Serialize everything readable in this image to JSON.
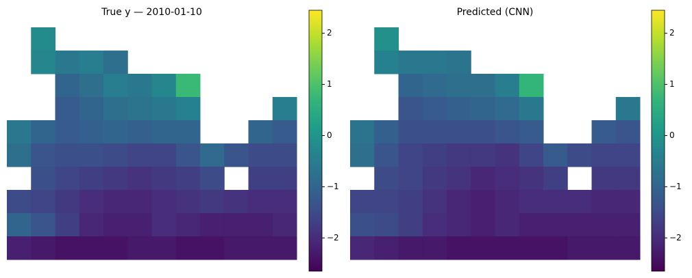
{
  "chart_data": [
    {
      "type": "heatmap",
      "title": "True y — 2010-01-10",
      "colormap": "viridis",
      "clim": [
        -2.65,
        2.45
      ],
      "cticks": [
        {
          "value": -2,
          "label": "−2"
        },
        {
          "value": -1,
          "label": "−1"
        },
        0,
        1,
        2
      ],
      "z": [
        [
          null,
          -0.2,
          null,
          null,
          null,
          null,
          null,
          null,
          null,
          null,
          null,
          null
        ],
        [
          null,
          -0.3,
          -0.6,
          -0.5,
          -0.8,
          null,
          null,
          null,
          null,
          null,
          null,
          null
        ],
        [
          null,
          null,
          -1.0,
          -0.8,
          -0.5,
          -0.6,
          -0.3,
          0.8,
          null,
          null,
          null,
          null
        ],
        [
          null,
          null,
          -1.2,
          -1.0,
          -0.8,
          -0.7,
          -0.6,
          -0.4,
          null,
          null,
          null,
          -0.5
        ],
        [
          -0.6,
          -1.0,
          -1.2,
          -1.1,
          -1.0,
          -1.1,
          -1.0,
          -1.0,
          null,
          null,
          -1.0,
          -1.2
        ],
        [
          -0.8,
          -1.3,
          -1.4,
          -1.4,
          -1.5,
          -1.6,
          -1.6,
          -1.3,
          -0.9,
          -1.3,
          -1.5,
          -1.5
        ],
        [
          null,
          -1.4,
          -1.6,
          -1.7,
          -1.8,
          -1.9,
          -1.8,
          -1.7,
          -1.5,
          null,
          -1.7,
          -1.7
        ],
        [
          -1.5,
          -1.6,
          -1.8,
          -2.0,
          -2.1,
          -2.1,
          -2.0,
          -1.9,
          -1.8,
          -1.9,
          -2.0,
          -2.0
        ],
        [
          -1.0,
          -1.3,
          -1.7,
          -2.1,
          -2.2,
          -2.2,
          -2.0,
          -2.1,
          -2.2,
          -2.2,
          -2.2,
          -2.1
        ],
        [
          -2.2,
          -2.3,
          -2.4,
          -2.4,
          -2.4,
          -2.3,
          -2.3,
          -2.4,
          -2.4,
          -2.3,
          -2.3,
          -2.3
        ]
      ]
    },
    {
      "type": "heatmap",
      "title": "Predicted (CNN)",
      "colormap": "viridis",
      "clim": [
        -2.65,
        2.45
      ],
      "cticks": [
        {
          "value": -2,
          "label": "−2"
        },
        {
          "value": -1,
          "label": "−1"
        },
        0,
        1,
        2
      ],
      "z": [
        [
          null,
          -0.1,
          null,
          null,
          null,
          null,
          null,
          null,
          null,
          null,
          null,
          null
        ],
        [
          null,
          -0.4,
          -0.6,
          -0.6,
          -0.7,
          null,
          null,
          null,
          null,
          null,
          null,
          null
        ],
        [
          null,
          null,
          -1.0,
          -0.9,
          -0.8,
          -0.8,
          -0.5,
          0.7,
          null,
          null,
          null,
          null
        ],
        [
          null,
          null,
          -1.3,
          -1.2,
          -1.1,
          -1.0,
          -0.9,
          -0.6,
          null,
          null,
          null,
          -0.6
        ],
        [
          -0.7,
          -1.1,
          -1.4,
          -1.4,
          -1.4,
          -1.4,
          -1.3,
          -1.2,
          null,
          null,
          -1.2,
          -1.3
        ],
        [
          -0.8,
          -1.3,
          -1.6,
          -1.7,
          -1.8,
          -1.8,
          -1.9,
          -1.6,
          -1.2,
          -1.5,
          -1.6,
          -1.6
        ],
        [
          null,
          -1.5,
          -1.6,
          -1.8,
          -1.9,
          -2.1,
          -2.0,
          -1.9,
          -1.7,
          null,
          -1.8,
          -1.8
        ],
        [
          -1.6,
          -1.6,
          -1.7,
          -1.9,
          -2.1,
          -2.2,
          -2.1,
          -2.0,
          -2.0,
          -2.0,
          -2.1,
          -2.1
        ],
        [
          -1.4,
          -1.5,
          -1.7,
          -2.0,
          -2.1,
          -2.2,
          -2.1,
          -2.2,
          -2.2,
          -2.2,
          -2.2,
          -2.2
        ],
        [
          -2.1,
          -2.2,
          -2.3,
          -2.3,
          -2.4,
          -2.4,
          -2.4,
          -2.4,
          -2.4,
          -2.3,
          -2.3,
          -2.3
        ]
      ]
    }
  ]
}
